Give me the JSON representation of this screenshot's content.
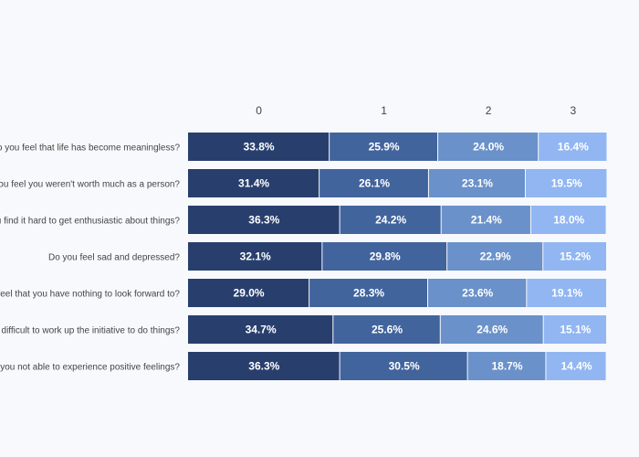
{
  "chart_data": {
    "type": "bar",
    "orientation": "horizontal",
    "stacked": true,
    "normalized_percent": true,
    "legend": "none",
    "grid": false,
    "column_labels": [
      "0",
      "1",
      "2",
      "3"
    ],
    "categories": [
      "Do you feel that life has become meaningless?",
      "Do you feel you weren't worth much as a person?",
      "Do you find it hard to get enthusiastic about things?",
      "Do you feel sad and depressed?",
      "Do you feel that you have nothing to look forward to?",
      "Do you find it difficult to work up the initiative to do things?",
      "Are you not able to experience positive feelings?"
    ],
    "series": [
      {
        "values": [
          33.8,
          31.4,
          36.3,
          32.1,
          29.0,
          34.7,
          36.3
        ],
        "labels": [
          "33.8%",
          "31.4%",
          "36.3%",
          "32.1%",
          "29.0%",
          "34.7%",
          "36.3%"
        ]
      },
      {
        "values": [
          25.9,
          26.1,
          24.2,
          29.8,
          28.3,
          25.6,
          30.5
        ],
        "labels": [
          "25.9%",
          "26.1%",
          "24.2%",
          "29.8%",
          "28.3%",
          "25.6%",
          "30.5%"
        ]
      },
      {
        "values": [
          24.0,
          23.1,
          21.4,
          22.9,
          23.6,
          24.6,
          18.7
        ],
        "labels": [
          "24.0%",
          "23.1%",
          "21.4%",
          "22.9%",
          "23.6%",
          "24.6%",
          "18.7%"
        ]
      },
      {
        "values": [
          16.4,
          19.5,
          18.0,
          15.2,
          19.1,
          15.1,
          14.4
        ],
        "labels": [
          "16.4%",
          "19.5%",
          "18.0%",
          "15.2%",
          "19.1%",
          "15.1%",
          "14.4%"
        ]
      }
    ],
    "colors": [
      "#283f6e",
      "#42649d",
      "#6a91c9",
      "#91b6f2"
    ],
    "xlim": [
      0,
      100
    ]
  }
}
